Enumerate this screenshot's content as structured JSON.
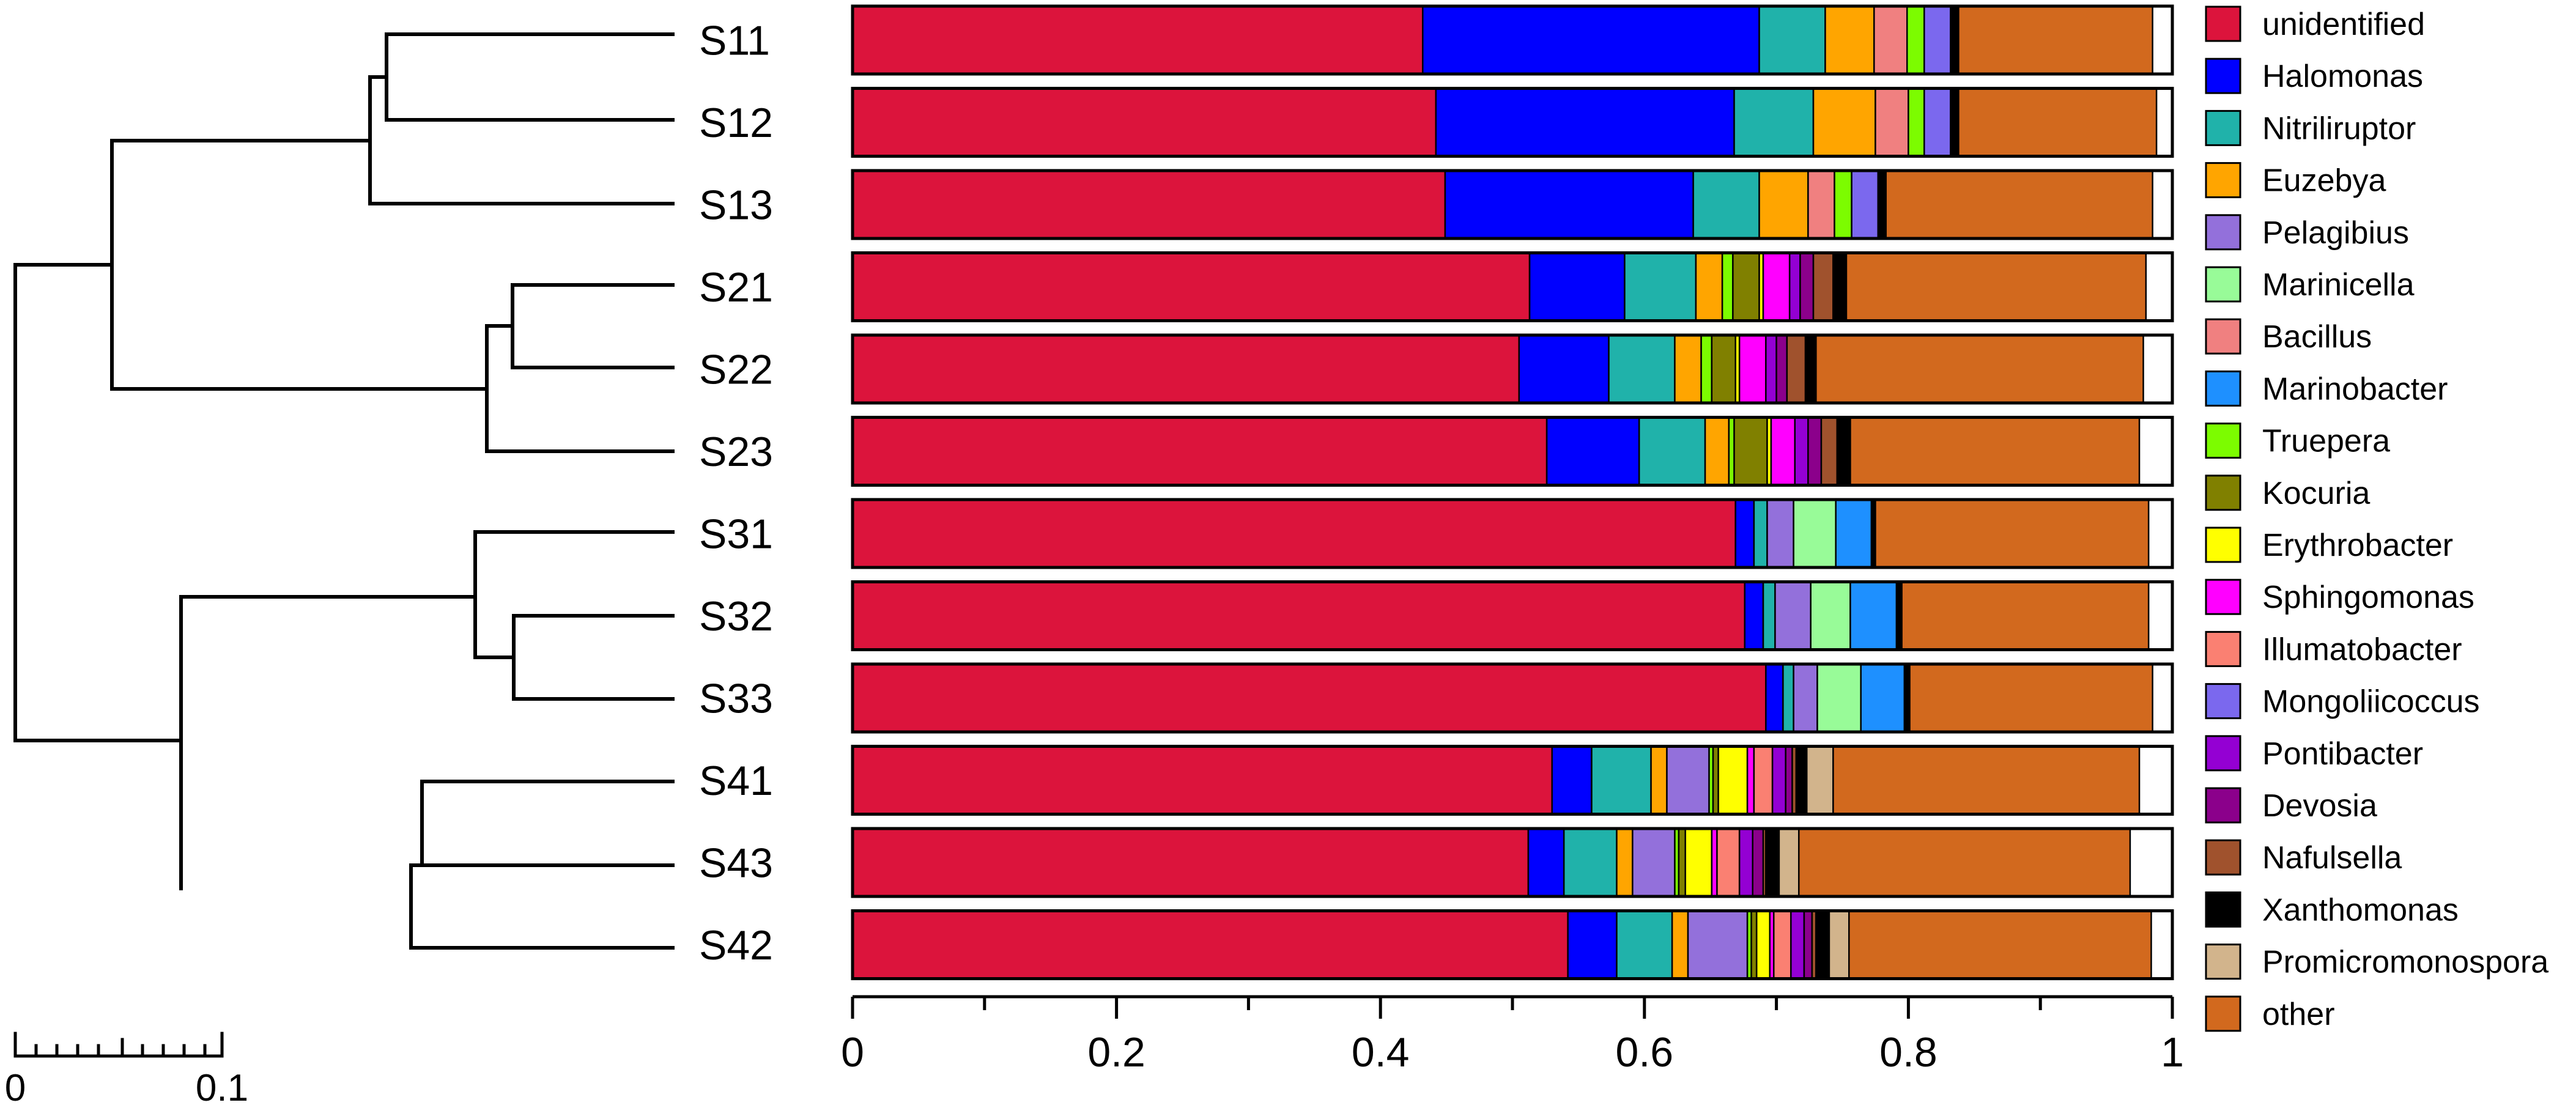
{
  "chart_data": {
    "type": "bar",
    "orientation": "horizontal",
    "stacked": true,
    "title": "",
    "xlabel": "",
    "ylabel": "",
    "xlim": [
      0,
      1
    ],
    "xticks": [
      "0",
      "0.2",
      "0.4",
      "0.6",
      "0.8",
      "1"
    ],
    "grid": false,
    "legend_position": "right",
    "categories": [
      "S11",
      "S12",
      "S13",
      "S21",
      "S22",
      "S23",
      "S31",
      "S32",
      "S33",
      "S41",
      "S43",
      "S42"
    ],
    "series": [
      {
        "name": "unidentified",
        "color": "#DC143C",
        "values": [
          0.432,
          0.442,
          0.449,
          0.513,
          0.505,
          0.526,
          0.669,
          0.676,
          0.692,
          0.53,
          0.512,
          0.542
        ]
      },
      {
        "name": "Halomonas",
        "color": "#0000FF",
        "values": [
          0.255,
          0.226,
          0.188,
          0.072,
          0.068,
          0.07,
          0.014,
          0.014,
          0.013,
          0.03,
          0.027,
          0.037
        ]
      },
      {
        "name": "Nitriliruptor",
        "color": "#20B2AA",
        "values": [
          0.05,
          0.06,
          0.05,
          0.054,
          0.05,
          0.05,
          0.01,
          0.009,
          0.008,
          0.045,
          0.04,
          0.042
        ]
      },
      {
        "name": "Euzebya",
        "color": "#FFA500",
        "values": [
          0.037,
          0.047,
          0.037,
          0.02,
          0.02,
          0.018,
          0.0,
          0.0,
          0.0,
          0.012,
          0.012,
          0.012
        ]
      },
      {
        "name": "Pelagibius",
        "color": "#9370DB",
        "values": [
          0.0,
          0.0,
          0.0,
          0.0,
          0.0,
          0.0,
          0.02,
          0.027,
          0.018,
          0.032,
          0.032,
          0.045
        ]
      },
      {
        "name": "Marinicella",
        "color": "#98FB98",
        "values": [
          0.0,
          0.0,
          0.0,
          0.0,
          0.0,
          0.0,
          0.032,
          0.03,
          0.033,
          0.0,
          0.0,
          0.0
        ]
      },
      {
        "name": "Bacillus",
        "color": "#F08080",
        "values": [
          0.025,
          0.025,
          0.02,
          0.0,
          0.0,
          0.0,
          0.0,
          0.0,
          0.0,
          0.0,
          0.0,
          0.0
        ]
      },
      {
        "name": "Marinobacter",
        "color": "#1E90FF",
        "values": [
          0.0,
          0.0,
          0.0,
          0.0,
          0.0,
          0.0,
          0.027,
          0.035,
          0.033,
          0.0,
          0.0,
          0.0
        ]
      },
      {
        "name": "Truepera",
        "color": "#7CFC00",
        "values": [
          0.013,
          0.012,
          0.013,
          0.008,
          0.008,
          0.004,
          0.0,
          0.0,
          0.0,
          0.003,
          0.003,
          0.003
        ]
      },
      {
        "name": "Kocuria",
        "color": "#808000",
        "values": [
          0.0,
          0.0,
          0.0,
          0.02,
          0.018,
          0.025,
          0.0,
          0.0,
          0.0,
          0.004,
          0.005,
          0.004
        ]
      },
      {
        "name": "Erythrobacter",
        "color": "#FFFF00",
        "values": [
          0.0,
          0.0,
          0.0,
          0.003,
          0.003,
          0.003,
          0.0,
          0.0,
          0.0,
          0.022,
          0.02,
          0.01
        ]
      },
      {
        "name": "Sphingomonas",
        "color": "#FF00FF",
        "values": [
          0.0,
          0.0,
          0.0,
          0.02,
          0.02,
          0.018,
          0.0,
          0.0,
          0.0,
          0.005,
          0.004,
          0.003
        ]
      },
      {
        "name": "Illumatobacter",
        "color": "#FA8072",
        "values": [
          0.0,
          0.0,
          0.0,
          0.0,
          0.0,
          0.0,
          0.0,
          0.0,
          0.0,
          0.014,
          0.017,
          0.013
        ]
      },
      {
        "name": "Mongoliicoccus",
        "color": "#7B68EE",
        "values": [
          0.02,
          0.02,
          0.02,
          0.0,
          0.0,
          0.0,
          0.0,
          0.0,
          0.0,
          0.0,
          0.0,
          0.0
        ]
      },
      {
        "name": "Pontibacter",
        "color": "#9400D3",
        "values": [
          0.0,
          0.0,
          0.0,
          0.008,
          0.008,
          0.01,
          0.0,
          0.0,
          0.0,
          0.01,
          0.01,
          0.01
        ]
      },
      {
        "name": "Devosia",
        "color": "#8B008B",
        "values": [
          0.0,
          0.0,
          0.0,
          0.01,
          0.008,
          0.01,
          0.0,
          0.0,
          0.0,
          0.005,
          0.008,
          0.006
        ]
      },
      {
        "name": "Nafulsella",
        "color": "#A0522D",
        "values": [
          0.0,
          0.0,
          0.0,
          0.015,
          0.014,
          0.012,
          0.0,
          0.0,
          0.0,
          0.003,
          0.002,
          0.003
        ]
      },
      {
        "name": "Xanthomonas",
        "color": "#000000",
        "values": [
          0.006,
          0.006,
          0.006,
          0.01,
          0.008,
          0.01,
          0.003,
          0.004,
          0.004,
          0.008,
          0.01,
          0.01
        ]
      },
      {
        "name": "Promicromonospora",
        "color": "#D2B48C",
        "values": [
          0.0,
          0.0,
          0.0,
          0.0,
          0.0,
          0.0,
          0.0,
          0.0,
          0.0,
          0.02,
          0.015,
          0.015
        ]
      },
      {
        "name": "other",
        "color": "#D2691E",
        "values": [
          0.147,
          0.15,
          0.202,
          0.227,
          0.248,
          0.219,
          0.207,
          0.187,
          0.184,
          0.232,
          0.251,
          0.229
        ]
      }
    ]
  },
  "dendrogram": {
    "scale_labels": [
      "0",
      "0.1"
    ]
  }
}
